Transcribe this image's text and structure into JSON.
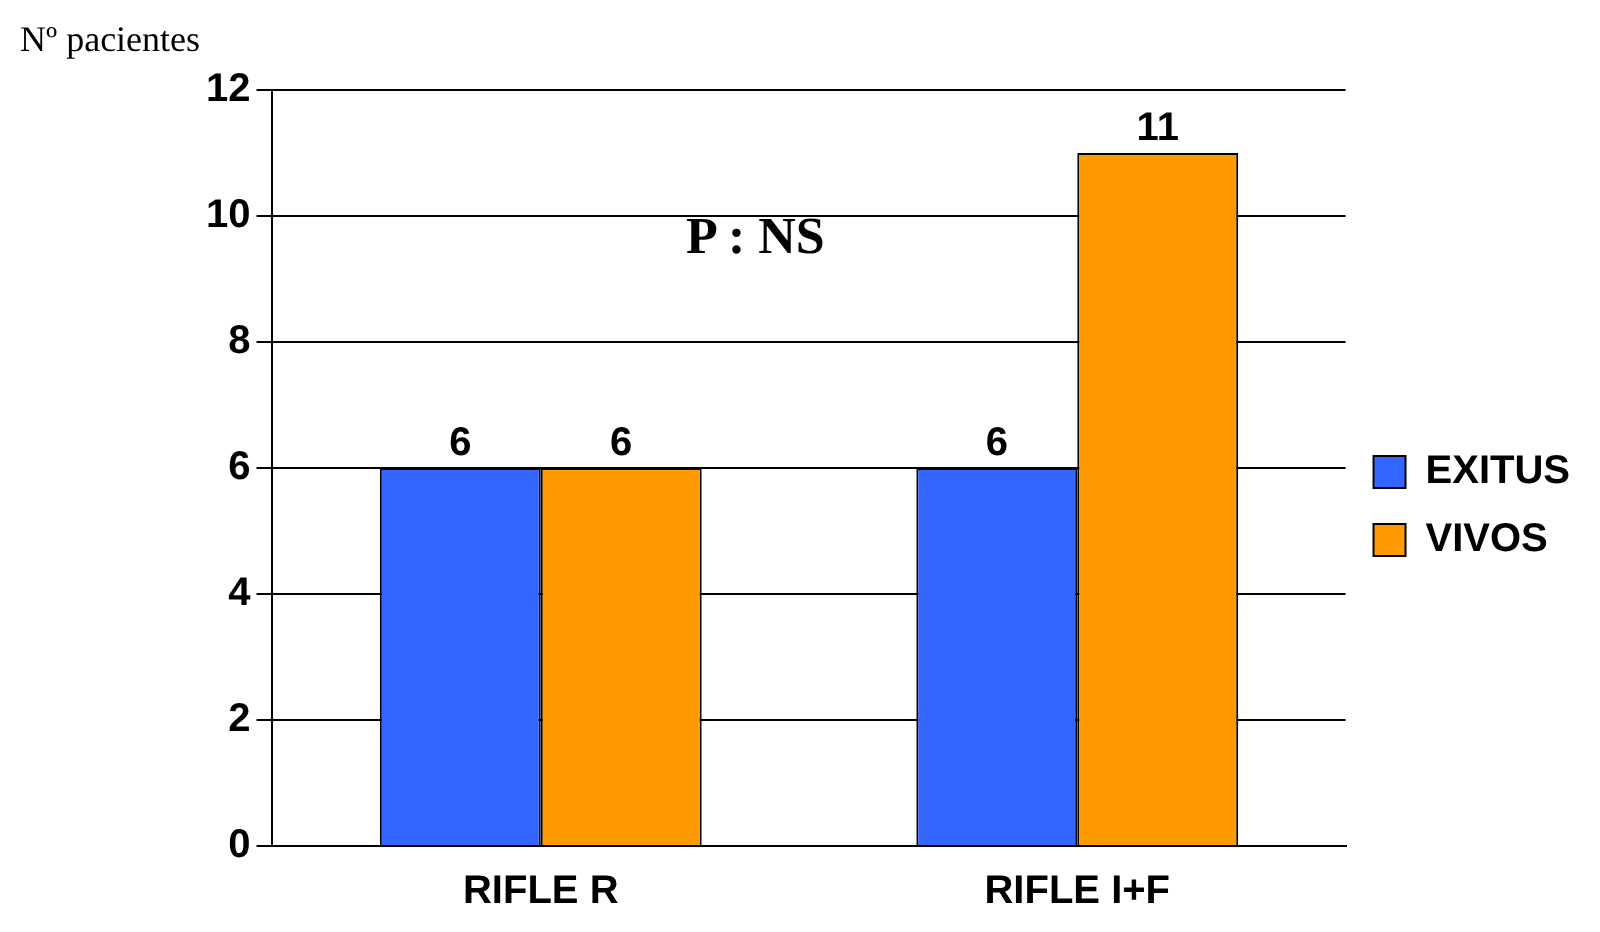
{
  "chart_data": {
    "type": "bar",
    "ylabel": "Nº pacientes",
    "annotations": [
      "P : NS"
    ],
    "categories": [
      "RIFLE R",
      "RIFLE I+F"
    ],
    "series": [
      {
        "name": "EXITUS",
        "color": "#3366ff",
        "values": [
          6,
          6
        ]
      },
      {
        "name": "VIVOS",
        "color": "#ff9900",
        "values": [
          6,
          11
        ]
      }
    ],
    "ylim": [
      0,
      12
    ],
    "yticks": [
      0,
      2,
      4,
      6,
      8,
      10,
      12
    ],
    "grid": "y",
    "legend": "right",
    "data_labels": true
  }
}
